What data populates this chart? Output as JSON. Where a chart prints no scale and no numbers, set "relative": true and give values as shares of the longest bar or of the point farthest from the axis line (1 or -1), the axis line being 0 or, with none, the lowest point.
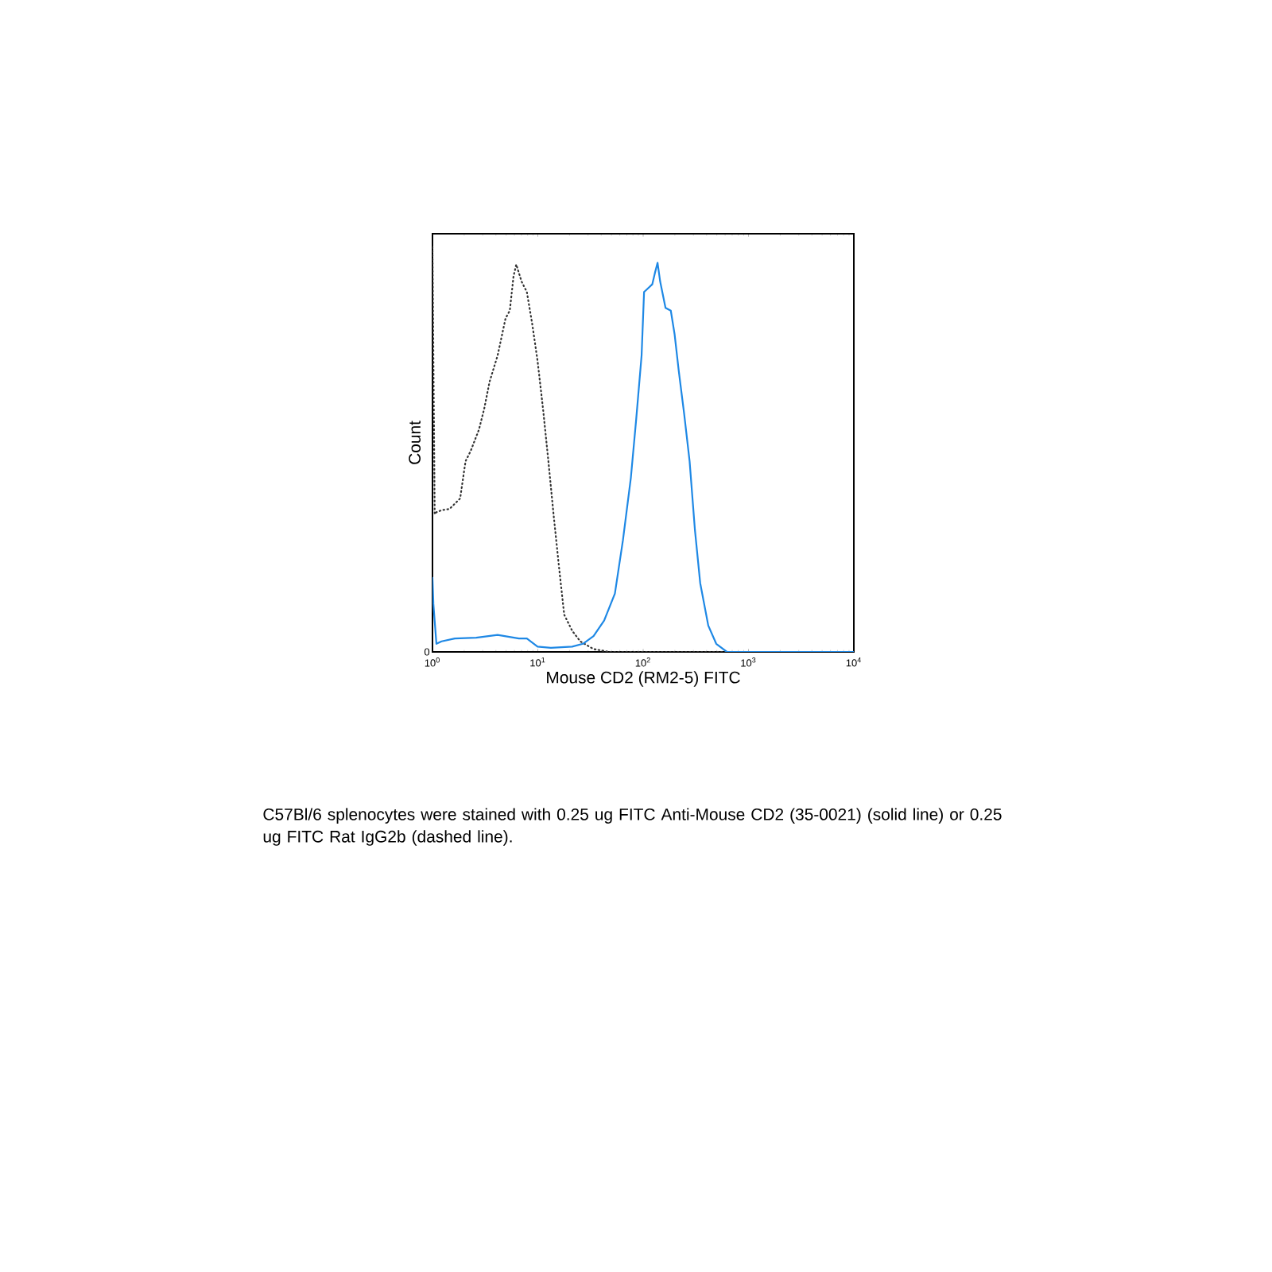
{
  "chart_data": {
    "type": "line",
    "xlabel": "Mouse CD2 (RM2-5) FITC",
    "ylabel": "Count",
    "relative": true,
    "log": "x",
    "xlim": [
      1,
      10000
    ],
    "xticks": [
      {
        "value": 1,
        "label": "10$^{0}$"
      },
      {
        "value": 10,
        "label": "10$^{1}$"
      },
      {
        "value": 100,
        "label": "10$^{2}$"
      },
      {
        "value": 1000,
        "label": "10$^{3}$"
      },
      {
        "value": 10000,
        "label": "10$^{4}$"
      }
    ],
    "series": [
      {
        "color": "#333333",
        "line_style": "dashed",
        "x": [
          1,
          1.05,
          1.09,
          1.22,
          1.45,
          1.83,
          2.06,
          2.31,
          2.76,
          3.1,
          3.48,
          4.15,
          4.94,
          5.42,
          5.88,
          6.24,
          7.01,
          7.87,
          8.85,
          9.94,
          11.2,
          12.6,
          14.1,
          15.9,
          17.8,
          21.2,
          25.3,
          33.8,
          48,
          10000
        ],
        "values": [
          1.0,
          0.34,
          0.345,
          0.35,
          0.353,
          0.379,
          0.471,
          0.497,
          0.549,
          0.601,
          0.667,
          0.732,
          0.824,
          0.843,
          0.928,
          0.957,
          0.915,
          0.889,
          0.81,
          0.719,
          0.601,
          0.471,
          0.34,
          0.209,
          0.092,
          0.052,
          0.026,
          0.007,
          0,
          0
        ]
      },
      {
        "color": "#1e88e5",
        "line_style": "solid",
        "x": [
          1,
          1.02,
          1.09,
          1.22,
          1.63,
          2.6,
          4.15,
          6.61,
          7.87,
          9.94,
          13.3,
          21.2,
          26.8,
          33.8,
          42.7,
          53.9,
          64.2,
          76.5,
          85.9,
          96.6,
          102,
          108,
          122,
          129,
          137,
          145,
          163,
          183,
          199,
          218,
          245,
          276,
          310,
          348,
          415,
          494,
          624,
          10000
        ],
        "values": [
          0.183,
          0.118,
          0.02,
          0.026,
          0.033,
          0.035,
          0.042,
          0.033,
          0.033,
          0.013,
          0.01,
          0.013,
          0.02,
          0.039,
          0.078,
          0.144,
          0.275,
          0.431,
          0.575,
          0.732,
          0.889,
          0.895,
          0.908,
          0.935,
          0.961,
          0.915,
          0.85,
          0.843,
          0.784,
          0.693,
          0.588,
          0.471,
          0.301,
          0.17,
          0.065,
          0.02,
          0,
          0
        ]
      }
    ],
    "annotations": [
      {
        "text": "0",
        "x": 1,
        "y": 0
      },
      "C57Bl/6 splenocytes were stained with 0.25 ug FITC Anti-Mouse CD2 (35-0021) (solid line) or 0.25 ug FITC Rat IgG2b (dashed line)."
    ]
  }
}
